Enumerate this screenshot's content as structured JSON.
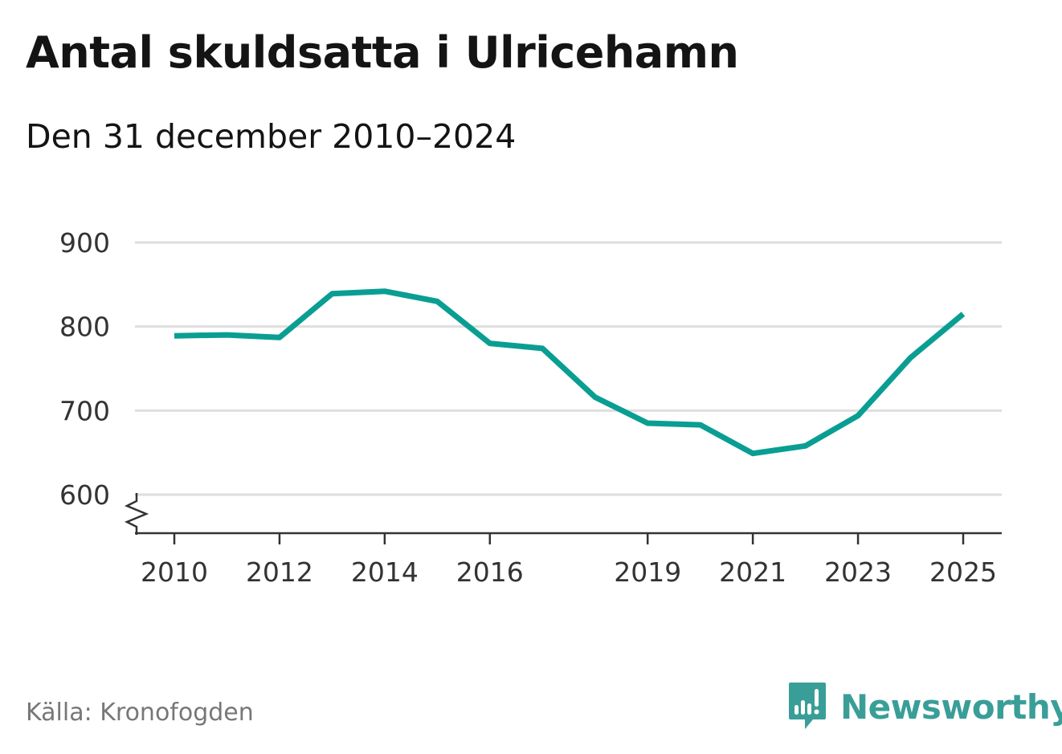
{
  "header": {
    "title": "Antal skuldsatta i Ulricehamn",
    "subtitle": "Den 31 december 2010–2024"
  },
  "footer": {
    "source": "Källa: Kronofogden",
    "brand": "Newsworthy",
    "brand_icon": "bar-chart-speech-bubble-icon"
  },
  "colors": {
    "line": "#0a9e93",
    "grid": "#dedede",
    "axis": "#333333",
    "brand": "#3a9e98"
  },
  "chart_data": {
    "type": "line",
    "title": "Antal skuldsatta i Ulricehamn",
    "subtitle": "Den 31 december 2010–2024",
    "xlabel": "",
    "ylabel": "",
    "x_ticks": [
      "2010",
      "2012",
      "2014",
      "2016",
      "2019",
      "2021",
      "2023",
      "2025"
    ],
    "y_ticks": [
      "600",
      "700",
      "800",
      "900"
    ],
    "ylim": [
      555,
      900
    ],
    "xlim": [
      2010,
      2025
    ],
    "y_axis_break": true,
    "grid": true,
    "legend": "none",
    "series": [
      {
        "x": [
          2010,
          2011,
          2012,
          2013,
          2014,
          2015,
          2016,
          2017,
          2018,
          2019,
          2020,
          2021,
          2022,
          2023,
          2024,
          2025
        ],
        "values": [
          789,
          790,
          787,
          839,
          842,
          830,
          780,
          774,
          716,
          685,
          683,
          649,
          658,
          694,
          763,
          815
        ]
      }
    ]
  }
}
